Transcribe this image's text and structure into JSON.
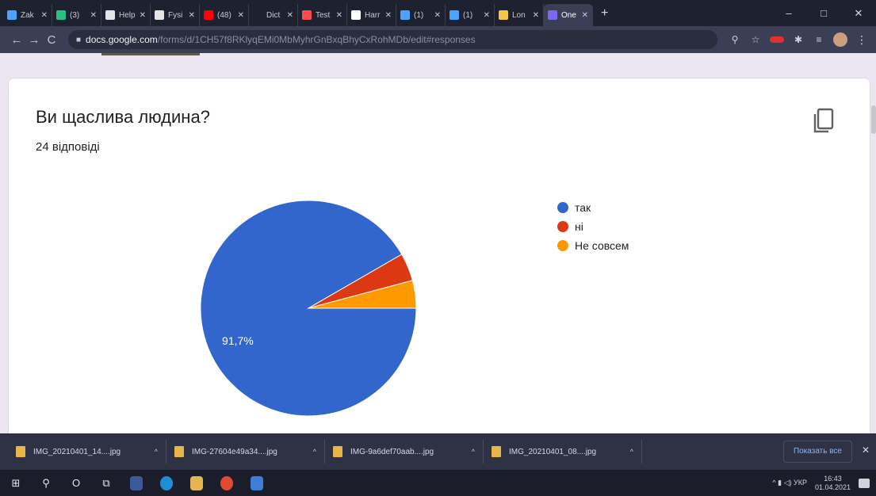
{
  "browser": {
    "tabs": [
      {
        "title": "Zak",
        "color": "#4aa3ff"
      },
      {
        "title": "(3)",
        "color": "#26c281"
      },
      {
        "title": "Help",
        "color": "#e5e5e5"
      },
      {
        "title": "Fysi",
        "color": "#e5e5e5"
      },
      {
        "title": "(48)",
        "color": "#ff0000"
      },
      {
        "title": "Dict",
        "color": "#1d2130"
      },
      {
        "title": "Test",
        "color": "#ff4d4d"
      },
      {
        "title": "Harr",
        "color": "#ffffff"
      },
      {
        "title": "(1)",
        "color": "#4aa3ff"
      },
      {
        "title": "(1)",
        "color": "#4aa3ff"
      },
      {
        "title": "Lon",
        "color": "#f2c744"
      },
      {
        "title": "One",
        "color": "#7b68ee"
      }
    ],
    "new_tab": "+",
    "window": {
      "minimize": "–",
      "maximize": "□",
      "close": "✕"
    },
    "nav": {
      "back": "←",
      "forward": "→",
      "reload": "C"
    },
    "url": {
      "domain": "docs.google.com",
      "path": "/forms/d/1CH57f8RKlyqEMi0MbMyhrGnBxqBhyCxRohMDb/edit#responses"
    },
    "extensions": {
      "search": "⚲",
      "star": "☆",
      "puzzle": "✱",
      "list": "≡",
      "menu": "⋮"
    }
  },
  "question": {
    "title": "Ви щаслива людина?",
    "responses": "24 відповіді"
  },
  "chart_data": {
    "type": "pie",
    "title": "Ви щаслива людина?",
    "labels": [
      "так",
      "ні",
      "Не совсем"
    ],
    "values": [
      22,
      1,
      1
    ],
    "colors": [
      "#3366cc",
      "#dc3912",
      "#ff9900"
    ],
    "slice_labels": [
      "91,7%",
      "",
      ""
    ],
    "legend": "right"
  },
  "downloads": {
    "items": [
      "IMG_20210401_14....jpg",
      "IMG-27604e49a34....jpg",
      "IMG-9a6def70aab....jpg",
      "IMG_20210401_08....jpg"
    ],
    "show_all": "Показать все",
    "close": "✕"
  },
  "taskbar": {
    "start": "⊞",
    "search": "⚲",
    "cortana": "O",
    "taskview": "⧉",
    "tray": "^  ▮  ◁)  УКР",
    "time": "16:43",
    "date": "01.04.2021"
  }
}
